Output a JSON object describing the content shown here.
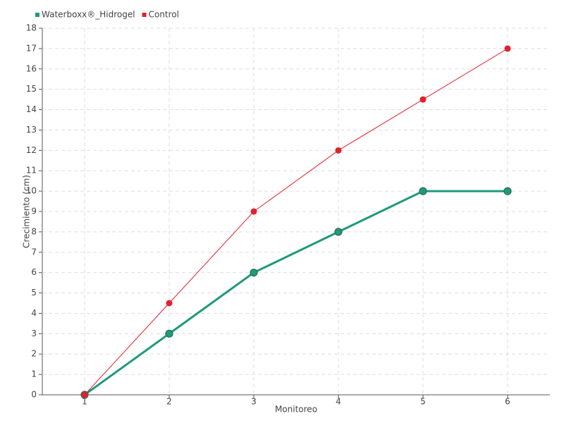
{
  "chart_data": {
    "type": "line",
    "x": [
      1,
      2,
      3,
      4,
      5,
      6
    ],
    "xlim": [
      0.5,
      6.5
    ],
    "xticks": [
      1,
      2,
      3,
      4,
      5,
      6
    ],
    "ylim": [
      0,
      18
    ],
    "yticks": [
      0,
      1,
      2,
      3,
      4,
      5,
      6,
      7,
      8,
      9,
      10,
      11,
      12,
      13,
      14,
      15,
      16,
      17,
      18
    ],
    "x_label": "Monitoreo",
    "y_label": "Crecimiento (cm)",
    "grid": true,
    "legend": "top-left",
    "series": [
      {
        "name": "Waterboxx®_Hidrogel",
        "color": "#1e9a7c",
        "values": [
          0,
          3,
          6,
          8,
          10,
          10
        ]
      },
      {
        "name": "Control",
        "color": "#e3202c",
        "values": [
          0,
          4.5,
          9,
          12,
          14.5,
          17
        ]
      }
    ]
  }
}
